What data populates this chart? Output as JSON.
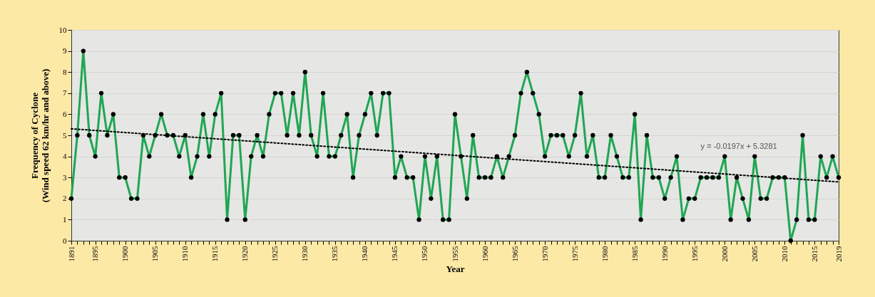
{
  "chart_data": {
    "type": "line",
    "xlabel": "Year",
    "ylabel": "Frequency of Cyclone\n(Wind speed 62 km/hr and above)",
    "x": [
      1891,
      1892,
      1893,
      1894,
      1895,
      1896,
      1897,
      1898,
      1899,
      1900,
      1901,
      1902,
      1903,
      1904,
      1905,
      1906,
      1907,
      1908,
      1909,
      1910,
      1911,
      1912,
      1913,
      1914,
      1915,
      1916,
      1917,
      1918,
      1919,
      1920,
      1921,
      1922,
      1923,
      1924,
      1925,
      1926,
      1927,
      1928,
      1929,
      1930,
      1931,
      1932,
      1933,
      1934,
      1935,
      1936,
      1937,
      1938,
      1939,
      1940,
      1941,
      1942,
      1943,
      1944,
      1945,
      1946,
      1947,
      1948,
      1949,
      1950,
      1951,
      1952,
      1953,
      1954,
      1955,
      1956,
      1957,
      1958,
      1959,
      1960,
      1961,
      1962,
      1963,
      1964,
      1965,
      1966,
      1967,
      1968,
      1969,
      1970,
      1971,
      1972,
      1973,
      1974,
      1975,
      1976,
      1977,
      1978,
      1979,
      1980,
      1981,
      1982,
      1983,
      1984,
      1985,
      1986,
      1987,
      1988,
      1989,
      1990,
      1991,
      1992,
      1993,
      1994,
      1995,
      1996,
      1997,
      1998,
      1999,
      2000,
      2001,
      2002,
      2003,
      2004,
      2005,
      2006,
      2007,
      2008,
      2009,
      2010,
      2011,
      2012,
      2013,
      2014,
      2015,
      2016,
      2017,
      2018,
      2019
    ],
    "series": [
      {
        "color": "#1fa653",
        "marker": "circle",
        "line_style": "solid",
        "values": [
          2,
          5,
          9,
          5,
          4,
          7,
          5,
          6,
          3,
          3,
          2,
          2,
          5,
          4,
          5,
          6,
          5,
          5,
          4,
          5,
          3,
          4,
          6,
          4,
          6,
          7,
          1,
          5,
          5,
          1,
          4,
          5,
          4,
          6,
          7,
          7,
          5,
          7,
          5,
          8,
          5,
          4,
          7,
          4,
          4,
          5,
          6,
          3,
          5,
          6,
          7,
          5,
          7,
          7,
          3,
          4,
          3,
          3,
          1,
          4,
          2,
          4,
          1,
          1,
          6,
          4,
          2,
          5,
          3,
          3,
          3,
          4,
          3,
          4,
          5,
          7,
          8,
          7,
          6,
          4,
          5,
          5,
          5,
          4,
          5,
          7,
          4,
          5,
          3,
          3,
          5,
          4,
          3,
          3,
          6,
          1,
          5,
          3,
          3,
          2,
          3,
          4,
          1,
          2,
          2,
          3,
          3,
          3,
          3,
          4,
          1,
          3,
          2,
          1,
          4,
          2,
          2,
          3,
          3,
          3,
          0,
          1,
          5,
          1,
          1,
          4,
          3,
          4,
          3
        ]
      },
      {
        "type": "line",
        "color": "#000000",
        "marker": "none",
        "line_style": "dotted",
        "x": [
          1891,
          2019
        ],
        "values": [
          5.31,
          2.79
        ]
      }
    ],
    "annotations": [
      "y = -0.0197x + 5.3281"
    ],
    "xlim": [
      1891,
      2019
    ],
    "xticks": [
      1891,
      1895,
      1900,
      1905,
      1910,
      1915,
      1920,
      1925,
      1930,
      1935,
      1940,
      1945,
      1950,
      1955,
      1960,
      1965,
      1970,
      1975,
      1980,
      1985,
      1990,
      1995,
      2000,
      2005,
      2010,
      2015,
      2019
    ],
    "ylim": [
      0,
      10
    ],
    "yticks": [
      0,
      1,
      2,
      3,
      4,
      5,
      6,
      7,
      8,
      9,
      10
    ],
    "grid": "y"
  }
}
